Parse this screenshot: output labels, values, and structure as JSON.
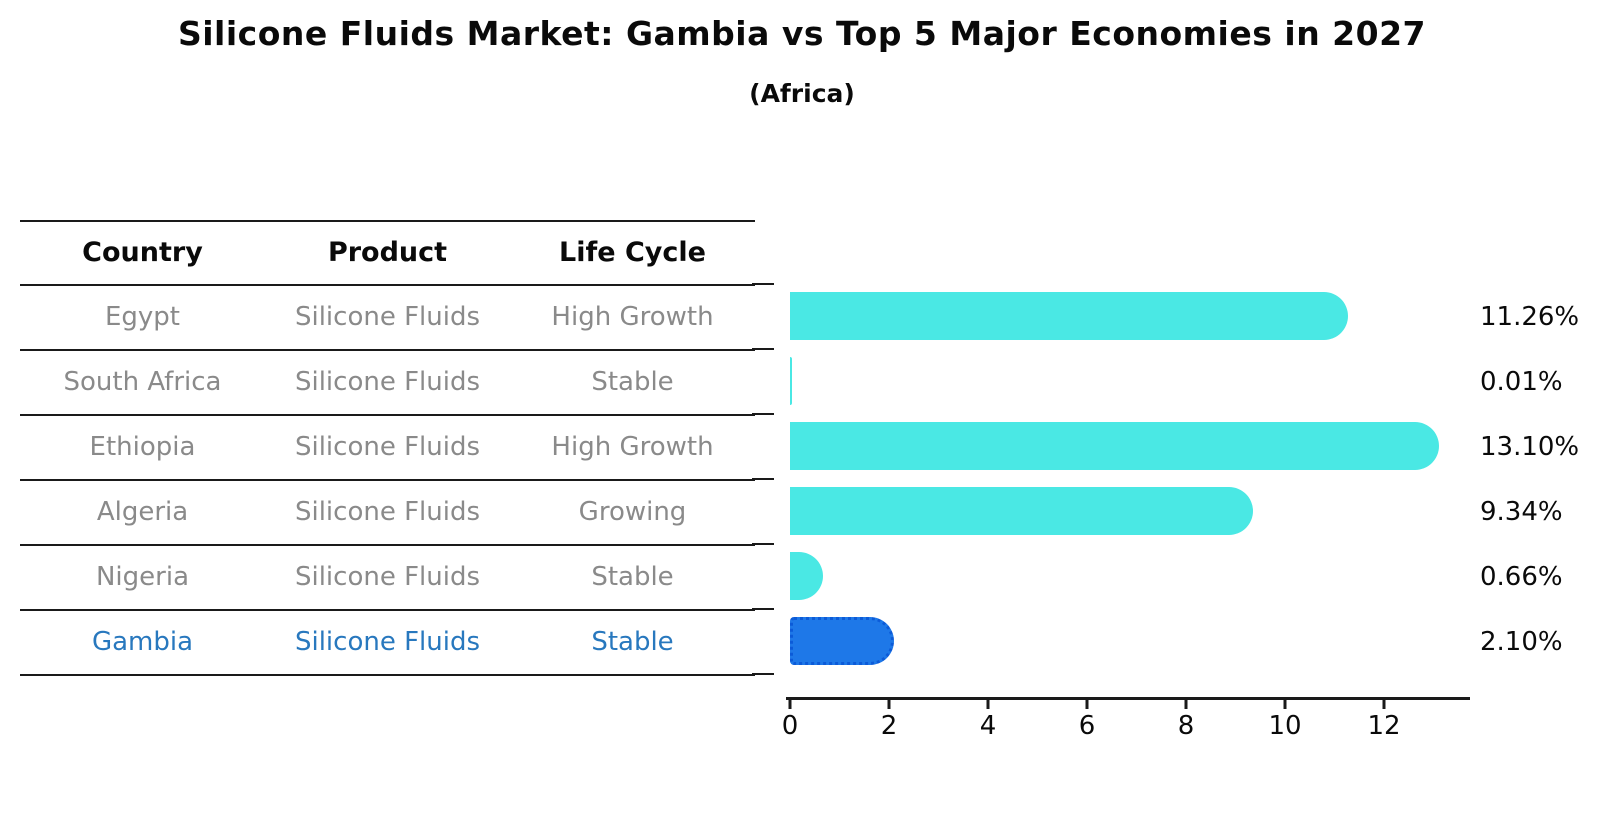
{
  "header": {
    "title": "Silicone Fluids Market: Gambia vs Top 5 Major Economies in 2027",
    "subtitle": "(Africa)"
  },
  "table": {
    "headers": [
      "Country",
      "Product",
      "Life Cycle"
    ],
    "rows": [
      {
        "country": "Egypt",
        "product": "Silicone Fluids",
        "life_cycle": "High Growth"
      },
      {
        "country": "South Africa",
        "product": "Silicone Fluids",
        "life_cycle": "Stable"
      },
      {
        "country": "Ethiopia",
        "product": "Silicone Fluids",
        "life_cycle": "High Growth"
      },
      {
        "country": "Algeria",
        "product": "Silicone Fluids",
        "life_cycle": "Growing"
      },
      {
        "country": "Nigeria",
        "product": "Silicone Fluids",
        "life_cycle": "Stable"
      },
      {
        "country": "Gambia",
        "product": "Silicone Fluids",
        "life_cycle": "Stable"
      }
    ],
    "highlight_row": "Gambia",
    "text_color_default": "#8a8a8a",
    "text_color_highlight": "#2878BE"
  },
  "chart_data": {
    "type": "bar",
    "orientation": "horizontal",
    "title": "Silicone Fluids Market: Gambia vs Top 5 Major Economies in 2027",
    "subtitle": "(Africa)",
    "categories": [
      "Egypt",
      "South Africa",
      "Ethiopia",
      "Algeria",
      "Nigeria",
      "Gambia"
    ],
    "values": [
      11.26,
      0.01,
      13.1,
      9.34,
      0.66,
      2.1
    ],
    "value_labels": [
      "11.26%",
      "0.01%",
      "13.10%",
      "9.34%",
      "0.66%",
      "2.10%"
    ],
    "xticks": [
      "0",
      "2",
      "4",
      "6",
      "8",
      "10",
      "12"
    ],
    "xlim": [
      0,
      13.8
    ],
    "grid": false,
    "legend": false,
    "bar_color": "#4AE8E4",
    "highlight_color": "#1E78E8",
    "highlight_index": 5
  }
}
